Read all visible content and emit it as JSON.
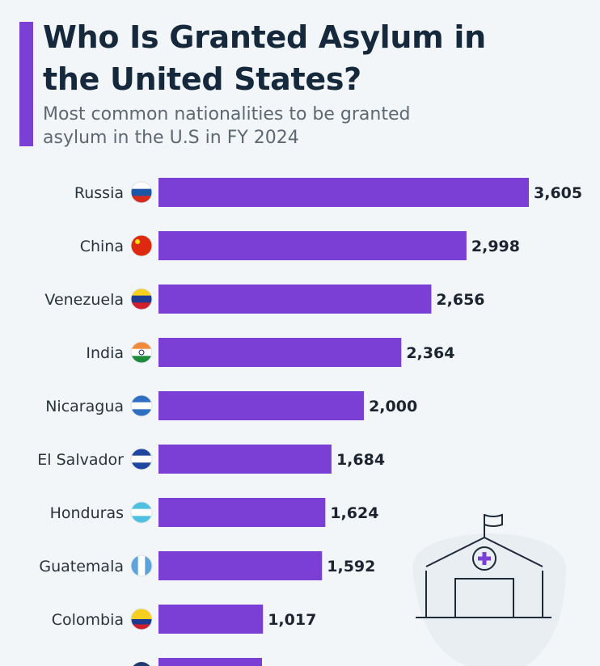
{
  "chart_data": {
    "type": "bar",
    "orientation": "horizontal",
    "title": "Who Is Granted Asylum in the United States?",
    "subtitle": "Most common nationalities to be granted asylum in the U.S in FY 2024",
    "categories": [
      "Russia",
      "China",
      "Venezuela",
      "India",
      "Nicaragua",
      "El Salvador",
      "Honduras",
      "Guatemala",
      "Colombia"
    ],
    "values": [
      3605,
      2998,
      2656,
      2364,
      2000,
      1684,
      1624,
      1592,
      1017
    ],
    "value_labels": [
      "3,605",
      "2,998",
      "2,656",
      "2,364",
      "2,000",
      "1,684",
      "1,624",
      "1,592",
      "1,017"
    ],
    "flags": [
      "russia-flag",
      "china-flag",
      "venezuela-flag",
      "india-flag",
      "nicaragua-flag",
      "el-salvador-flag",
      "honduras-flag",
      "guatemala-flag",
      "colombia-flag"
    ],
    "bar_color": "#7b3fd6",
    "grid": false,
    "xlim": [
      0,
      3605
    ]
  },
  "illustration": "hospital-building-icon"
}
